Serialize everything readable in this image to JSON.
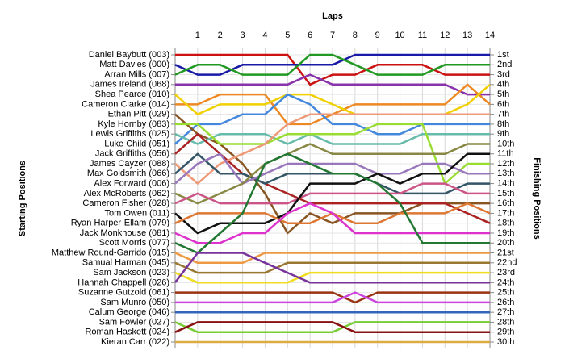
{
  "chart_data": {
    "type": "line",
    "x_title": "Laps",
    "y_title": "Starting Positions",
    "y2_title": "Finishing Positions",
    "x": [
      0,
      1,
      2,
      3,
      4,
      5,
      6,
      7,
      8,
      9,
      10,
      11,
      12,
      13,
      14
    ],
    "xlim": [
      0,
      14
    ],
    "xticks": [
      1,
      2,
      3,
      4,
      5,
      6,
      7,
      8,
      9,
      10,
      11,
      12,
      13,
      14
    ],
    "ylim": [
      1,
      30
    ],
    "y_reversed": true,
    "grid": true,
    "y2ticks": [
      {
        "value": 1,
        "label": "1st"
      },
      {
        "value": 2,
        "label": "2nd"
      },
      {
        "value": 3,
        "label": "3rd"
      },
      {
        "value": 4,
        "label": "4th"
      },
      {
        "value": 5,
        "label": "5th"
      },
      {
        "value": 6,
        "label": "6th"
      },
      {
        "value": 7,
        "label": "7th"
      },
      {
        "value": 8,
        "label": "8th"
      },
      {
        "value": 9,
        "label": "9th"
      },
      {
        "value": 10,
        "label": "10th"
      },
      {
        "value": 11,
        "label": "11th"
      },
      {
        "value": 12,
        "label": "12th"
      },
      {
        "value": 13,
        "label": "13th"
      },
      {
        "value": 14,
        "label": "14th"
      },
      {
        "value": 15,
        "label": "15th"
      },
      {
        "value": 16,
        "label": "16th"
      },
      {
        "value": 17,
        "label": "17th"
      },
      {
        "value": 18,
        "label": "18th"
      },
      {
        "value": 19,
        "label": "19th"
      },
      {
        "value": 20,
        "label": "20th"
      },
      {
        "value": 21,
        "label": "21st"
      },
      {
        "value": 22,
        "label": "22nd"
      },
      {
        "value": 23,
        "label": "23rd"
      },
      {
        "value": 24,
        "label": "24th"
      },
      {
        "value": 25,
        "label": "25th"
      },
      {
        "value": 26,
        "label": "26th"
      },
      {
        "value": 27,
        "label": "27th"
      },
      {
        "value": 28,
        "label": "28th"
      },
      {
        "value": 29,
        "label": "29th"
      },
      {
        "value": 30,
        "label": "30th"
      }
    ],
    "series": [
      {
        "name": "Daniel Baybutt (003)",
        "color": "#cc1111",
        "values": [
          1,
          1,
          1,
          1,
          1,
          1,
          4,
          3,
          3,
          2,
          2,
          2,
          3,
          3,
          3
        ]
      },
      {
        "name": "Matt Davies (000)",
        "color": "#1a1aa8",
        "values": [
          2,
          3,
          3,
          2,
          2,
          2,
          2,
          2,
          1,
          1,
          1,
          1,
          1,
          1,
          1
        ]
      },
      {
        "name": "Arran Mills (007)",
        "color": "#229922",
        "values": [
          3,
          2,
          2,
          3,
          3,
          3,
          1,
          1,
          2,
          3,
          3,
          3,
          2,
          2,
          2
        ]
      },
      {
        "name": "James Ireland (068)",
        "color": "#8833aa",
        "values": [
          4,
          4,
          4,
          4,
          4,
          4,
          3,
          4,
          4,
          4,
          4,
          4,
          4,
          5,
          5
        ]
      },
      {
        "name": "Cameron Clarke (014)",
        "color": "#ee8822",
        "values": [
          6,
          6,
          5,
          5,
          5,
          8,
          8,
          7,
          6,
          6,
          6,
          6,
          6,
          4,
          6
        ]
      },
      {
        "name": "Shea Pearce (010)",
        "color": "#f0d000",
        "values": [
          5,
          7,
          6,
          6,
          6,
          5,
          5,
          6,
          7,
          7,
          7,
          7,
          7,
          6,
          4
        ]
      },
      {
        "name": "Luke Child (051)",
        "color": "#4488dd",
        "values": [
          10,
          8,
          8,
          7,
          7,
          5,
          6,
          8,
          8,
          9,
          9,
          8,
          8,
          8,
          8
        ]
      },
      {
        "name": "Ethan Pitt (029)",
        "color": "#885522",
        "values": [
          7,
          9,
          10,
          12,
          15,
          19,
          17,
          18,
          17,
          17,
          17,
          16,
          16,
          16,
          16
        ]
      },
      {
        "name": "Lewis Griffiths (025)",
        "color": "#66bbaa",
        "values": [
          9,
          10,
          9,
          9,
          9,
          10,
          9,
          10,
          10,
          10,
          10,
          9,
          9,
          9,
          9
        ]
      },
      {
        "name": "Kyle Hornby (083)",
        "color": "#99dd33",
        "values": [
          8,
          8,
          10,
          10,
          10,
          9,
          9,
          9,
          9,
          8,
          8,
          8,
          14,
          12,
          12
        ]
      },
      {
        "name": "Jack Griffiths (056)",
        "color": "#aa2222",
        "values": [
          11,
          9,
          11,
          13,
          14,
          15,
          16,
          16,
          16,
          16,
          16,
          16,
          16,
          17,
          18
        ]
      },
      {
        "name": "James Cayzer (088)",
        "color": "#ee9977",
        "values": [
          12,
          14,
          12,
          11,
          10,
          8,
          7,
          7,
          7,
          7,
          7,
          7,
          7,
          7,
          7
        ]
      },
      {
        "name": "Max Goldsmith (066)",
        "color": "#335566",
        "values": [
          13,
          11,
          13,
          13,
          14,
          13,
          13,
          13,
          13,
          14,
          15,
          15,
          15,
          14,
          14
        ]
      },
      {
        "name": "Alex Forward (006)",
        "color": "#9977bb",
        "values": [
          14,
          12,
          11,
          14,
          13,
          12,
          12,
          12,
          12,
          13,
          13,
          12,
          12,
          13,
          13
        ]
      },
      {
        "name": "Alex McRoberts (062)",
        "color": "#888844",
        "values": [
          15,
          16,
          15,
          14,
          12,
          11,
          10,
          11,
          11,
          11,
          11,
          11,
          11,
          10,
          10
        ]
      },
      {
        "name": "Cameron Fisher (028)",
        "color": "#cc5588",
        "values": [
          16,
          15,
          16,
          16,
          16,
          16,
          15,
          15,
          15,
          15,
          15,
          14,
          14,
          15,
          15
        ]
      },
      {
        "name": "Tom Owen (011)",
        "color": "#111111",
        "values": [
          17,
          19,
          18,
          18,
          18,
          17,
          14,
          14,
          14,
          13,
          14,
          13,
          13,
          11,
          11
        ]
      },
      {
        "name": "Ryan Harper-Ellam (079)",
        "color": "#dd7733",
        "values": [
          18,
          17,
          17,
          17,
          17,
          18,
          18,
          17,
          18,
          18,
          17,
          17,
          17,
          16,
          17
        ]
      },
      {
        "name": "Jack Monkhouse (081)",
        "color": "#dd33cc",
        "values": [
          19,
          20,
          20,
          19,
          19,
          17,
          16,
          17,
          19,
          19,
          19,
          19,
          19,
          19,
          19
        ]
      },
      {
        "name": "Scott Morris (077)",
        "color": "#227733",
        "values": [
          20,
          21,
          19,
          17,
          12,
          11,
          12,
          13,
          13,
          14,
          16,
          20,
          20,
          20,
          20
        ]
      },
      {
        "name": "Matthew Round-Garrido (015)",
        "color": "#ee9944",
        "values": [
          21,
          22,
          22,
          22,
          21,
          21,
          21,
          21,
          21,
          21,
          21,
          21,
          21,
          21,
          21
        ]
      },
      {
        "name": "Samual Harman (045)",
        "color": "#997733",
        "values": [
          22,
          23,
          23,
          23,
          23,
          22,
          22,
          22,
          22,
          22,
          22,
          22,
          22,
          22,
          22
        ]
      },
      {
        "name": "Sam Jackson (023)",
        "color": "#eedd22",
        "values": [
          23,
          24,
          24,
          24,
          24,
          24,
          23,
          23,
          23,
          23,
          23,
          23,
          23,
          23,
          23
        ]
      },
      {
        "name": "Hannah Chappell (026)",
        "color": "#773399",
        "values": [
          24,
          21,
          21,
          21,
          22,
          23,
          24,
          24,
          24,
          24,
          24,
          24,
          24,
          24,
          24
        ]
      },
      {
        "name": "Suzanne Gutzold (061)",
        "color": "#993311",
        "values": [
          25,
          25,
          25,
          25,
          25,
          25,
          25,
          25,
          26,
          25,
          25,
          25,
          25,
          25,
          25
        ]
      },
      {
        "name": "Sam Munro (050)",
        "color": "#cc44dd",
        "values": [
          26,
          26,
          26,
          26,
          26,
          26,
          26,
          26,
          25,
          26,
          26,
          26,
          26,
          26,
          26
        ]
      },
      {
        "name": "Calum George (046)",
        "color": "#3366bb",
        "values": [
          27,
          27,
          27,
          27,
          27,
          27,
          27,
          27,
          27,
          27,
          27,
          27,
          27,
          27,
          27
        ]
      },
      {
        "name": "Sam Fowler (027)",
        "color": "#77cc33",
        "values": [
          28,
          29,
          29,
          29,
          29,
          29,
          29,
          29,
          28,
          28,
          28,
          28,
          28,
          28,
          28
        ]
      },
      {
        "name": "Roman Haskett (024)",
        "color": "#881111",
        "values": [
          29,
          28,
          28,
          28,
          28,
          28,
          28,
          28,
          29,
          29,
          29,
          29,
          29,
          29,
          29
        ]
      },
      {
        "name": "Kieran Carr (022)",
        "color": "#ddaa44",
        "values": [
          30,
          30,
          30,
          30,
          30,
          30,
          30,
          30,
          30,
          30,
          30,
          30,
          30,
          30,
          30
        ]
      }
    ]
  }
}
